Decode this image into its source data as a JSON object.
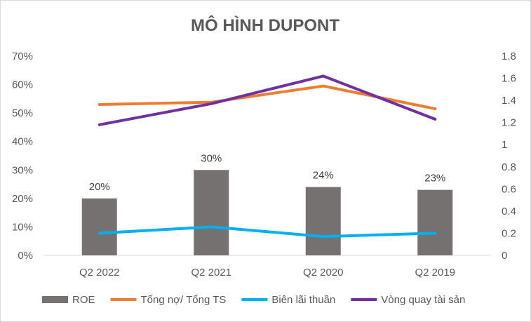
{
  "chart_data": {
    "type": "bar",
    "title": "MÔ HÌNH DUPONT",
    "categories": [
      "Q2 2022",
      "Q2 2021",
      "Q2 2020",
      "Q2 2019"
    ],
    "y_left": {
      "range": [
        0,
        70
      ],
      "ticks": [
        "0%",
        "10%",
        "20%",
        "30%",
        "40%",
        "50%",
        "60%",
        "70%"
      ]
    },
    "y_right": {
      "range": [
        0,
        1.8
      ],
      "ticks": [
        "0",
        "0.2",
        "0.4",
        "0.6",
        "0.8",
        "1",
        "1.2",
        "1.4",
        "1.6",
        "1.8"
      ]
    },
    "series": [
      {
        "name": "ROE",
        "type": "bar",
        "axis": "left",
        "color": "#757171",
        "values": [
          20,
          30,
          24,
          23
        ],
        "labels": [
          "20%",
          "30%",
          "24%",
          "23%"
        ]
      },
      {
        "name": "Tổng nợ/ Tổng TS",
        "type": "line",
        "axis": "left",
        "color": "#ED7D31",
        "values": [
          53,
          53.8,
          59.5,
          51.5
        ]
      },
      {
        "name": "Biên lãi thuần",
        "type": "line",
        "axis": "left",
        "color": "#00B0F0",
        "values": [
          7.8,
          10,
          6.6,
          7.8
        ]
      },
      {
        "name": "Vòng quay tài sản",
        "type": "line",
        "axis": "right",
        "color": "#7030A0",
        "values": [
          1.18,
          1.37,
          1.62,
          1.23
        ]
      }
    ],
    "legend_position": "bottom",
    "grid": false
  }
}
